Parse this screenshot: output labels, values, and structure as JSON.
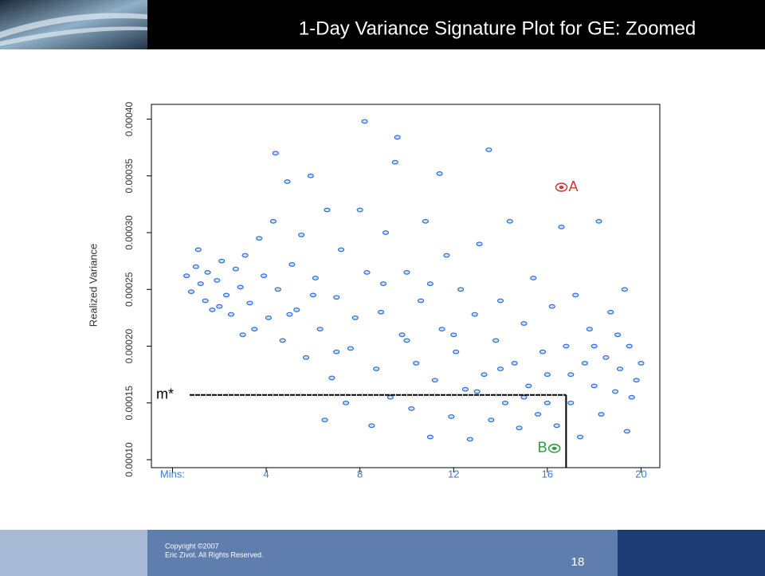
{
  "chart_data": {
    "type": "scatter",
    "title": "1-Day Variance Signature Plot for GE: Zoomed",
    "y_label": "Realized Variance",
    "color": "#2f6fd6",
    "xlim": [
      -0.9,
      20.8
    ],
    "ylim": [
      9.3e-05,
      0.000413
    ],
    "xticks": [
      {
        "value": 0,
        "label": "Mins:"
      },
      4,
      8,
      12,
      16,
      20
    ],
    "yticks": [
      {
        "value": 0.0001,
        "label": "0.00010"
      },
      0.00015,
      {
        "value": 0.0002,
        "label": "0.00020"
      },
      0.00025,
      {
        "value": 0.0003,
        "label": "0.00030"
      },
      0.00035,
      {
        "value": 0.0004,
        "label": "0.00040"
      }
    ],
    "x": [
      0.6,
      0.8,
      1.0,
      1.2,
      1.4,
      1.5,
      1.7,
      1.9,
      2.1,
      2.3,
      2.5,
      2.7,
      2.9,
      3.1,
      3.3,
      3.5,
      3.7,
      3.9,
      4.1,
      4.3,
      4.4,
      4.5,
      4.7,
      4.9,
      5.1,
      5.3,
      5.5,
      5.7,
      5.9,
      6.1,
      6.3,
      6.5,
      6.6,
      6.8,
      7.0,
      7.2,
      7.4,
      7.6,
      7.8,
      8.0,
      8.2,
      8.3,
      8.5,
      8.7,
      8.9,
      9.1,
      9.3,
      9.5,
      9.6,
      9.8,
      10.0,
      10.2,
      10.4,
      10.6,
      10.8,
      11.0,
      11.2,
      11.4,
      11.5,
      11.7,
      11.9,
      12.1,
      12.3,
      12.5,
      12.7,
      12.9,
      13.1,
      13.3,
      13.5,
      13.6,
      13.8,
      14.0,
      14.2,
      14.4,
      14.6,
      14.8,
      15.0,
      15.2,
      15.4,
      15.6,
      15.8,
      16.0,
      16.2,
      16.4,
      16.6,
      16.8,
      17.0,
      17.2,
      17.4,
      17.6,
      17.8,
      18.0,
      18.2,
      18.3,
      18.5,
      18.7,
      18.9,
      19.1,
      19.3,
      19.4,
      19.5,
      19.6,
      19.8,
      20.0,
      1.1,
      2.0,
      3.0,
      5.0,
      6.0,
      7.0,
      9.0,
      10.0,
      11.0,
      12.0,
      13.0,
      14.0,
      15.0,
      16.0,
      17.0,
      18.0,
      19.0
    ],
    "values": [
      0.000262,
      0.000248,
      0.00027,
      0.000255,
      0.00024,
      0.000265,
      0.000232,
      0.000258,
      0.000275,
      0.000245,
      0.000228,
      0.000268,
      0.000252,
      0.00028,
      0.000238,
      0.000215,
      0.000295,
      0.000262,
      0.000225,
      0.00031,
      0.00037,
      0.00025,
      0.000205,
      0.000345,
      0.000272,
      0.000232,
      0.000298,
      0.00019,
      0.00035,
      0.00026,
      0.000215,
      0.000135,
      0.00032,
      0.000172,
      0.000243,
      0.000285,
      0.00015,
      0.000198,
      0.000225,
      0.00032,
      0.000398,
      0.000265,
      0.00013,
      0.00018,
      0.00023,
      0.0003,
      0.000155,
      0.000362,
      0.000384,
      0.00021,
      0.000265,
      0.000145,
      0.000185,
      0.00024,
      0.00031,
      0.00012,
      0.00017,
      0.000352,
      0.000215,
      0.00028,
      0.000138,
      0.000195,
      0.00025,
      0.000162,
      0.000118,
      0.000228,
      0.00029,
      0.000175,
      0.000373,
      0.000135,
      0.000205,
      0.00024,
      0.00015,
      0.00031,
      0.000185,
      0.000128,
      0.00022,
      0.000165,
      0.00026,
      0.00014,
      0.000195,
      0.000175,
      0.000235,
      0.00013,
      0.000305,
      0.0002,
      0.00015,
      0.000245,
      0.00012,
      0.000185,
      0.000215,
      0.000165,
      0.00031,
      0.00014,
      0.00019,
      0.00023,
      0.00016,
      0.00018,
      0.00025,
      0.000125,
      0.0002,
      0.000155,
      0.00017,
      0.000185,
      0.000285,
      0.000235,
      0.00021,
      0.000228,
      0.000245,
      0.000195,
      0.000255,
      0.000205,
      0.000255,
      0.00021,
      0.00016,
      0.00018,
      0.000155,
      0.00015,
      0.000175,
      0.0002,
      0.00021
    ],
    "annotations": [
      {
        "label": "A",
        "x": 16.6,
        "y": 0.00034,
        "color": "#e03030"
      },
      {
        "label": "B",
        "x": 16.3,
        "y": 0.00011,
        "color": "#2a9a3a"
      }
    ],
    "m_star": {
      "label": "m*",
      "x": 16.8,
      "y": 0.000157
    }
  },
  "footer": {
    "copyright": "Copyright ©2007",
    "rights": "Eric Zivot. All Rights Reserved.",
    "page": "18"
  }
}
